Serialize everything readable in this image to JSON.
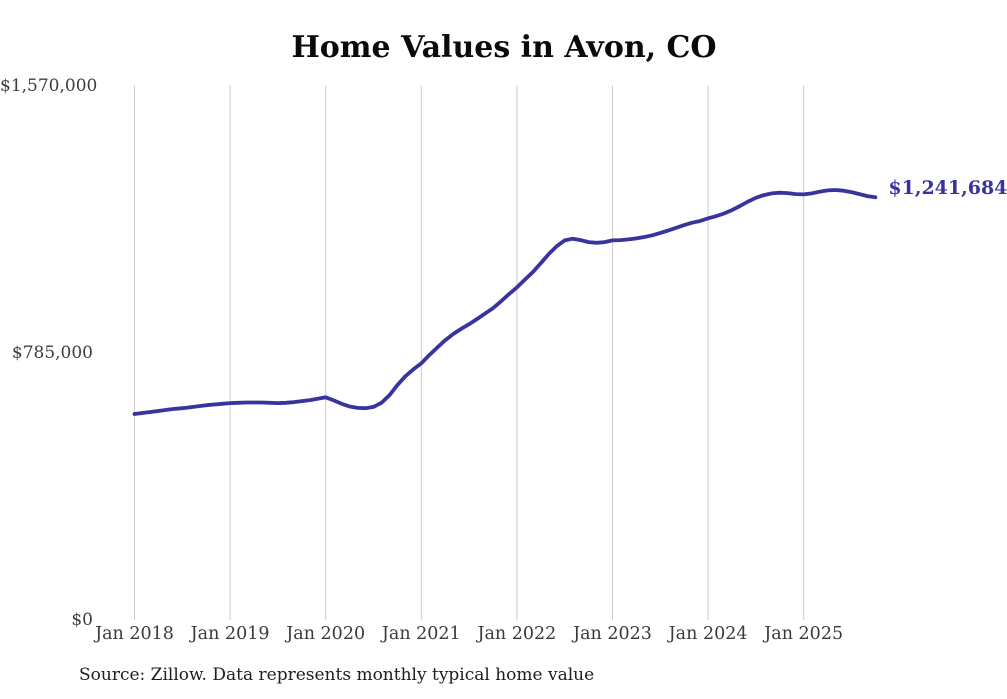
{
  "title": "Home Values in Avon, CO",
  "source_note": "Source: Zillow. Data represents monthly typical home value",
  "colors": {
    "line": "#39339f",
    "grid": "#cccccc",
    "axis_text": "#3a3a3a",
    "title_text": "#0a0a0a",
    "background": "#ffffff"
  },
  "chart_data": {
    "type": "line",
    "title": "Home Values in Avon, CO",
    "xlabel": "",
    "ylabel": "",
    "x_start": "Jan 2018",
    "x_interval": "month",
    "x_tick_labels": [
      "Jan 2018",
      "Jan 2019",
      "Jan 2020",
      "Jan 2021",
      "Jan 2022",
      "Jan 2023",
      "Jan 2024",
      "Jan 2025"
    ],
    "y_ticks": [
      0,
      785000,
      1570000
    ],
    "y_tick_labels": [
      "$0",
      "$785,000",
      "$1,570,000"
    ],
    "ylim": [
      0,
      1570000
    ],
    "grid": "vertical-only",
    "legend": "none",
    "final_value_label": "$1,241,684",
    "series": [
      {
        "name": "Monthly typical home value",
        "values": [
          605000,
          608000,
          611000,
          614000,
          617000,
          620000,
          622000,
          625000,
          628000,
          631000,
          633000,
          635000,
          637000,
          638000,
          639000,
          639000,
          639000,
          638000,
          637000,
          638000,
          640000,
          643000,
          646000,
          650000,
          654000,
          645000,
          635000,
          627000,
          623000,
          622000,
          626000,
          638000,
          660000,
          690000,
          716000,
          736000,
          754000,
          778000,
          800000,
          822000,
          840000,
          855000,
          869000,
          884000,
          900000,
          916000,
          936000,
          957000,
          977000,
          1000000,
          1022000,
          1048000,
          1075000,
          1098000,
          1115000,
          1120000,
          1116000,
          1110000,
          1108000,
          1110000,
          1115000,
          1116000,
          1118000,
          1121000,
          1125000,
          1130000,
          1137000,
          1144000,
          1152000,
          1160000,
          1167000,
          1172000,
          1180000,
          1186000,
          1194000,
          1204000,
          1216000,
          1229000,
          1240000,
          1248000,
          1253000,
          1255000,
          1254000,
          1251000,
          1250000,
          1253000,
          1258000,
          1262000,
          1263000,
          1261000,
          1257000,
          1251000,
          1245000,
          1241684
        ]
      }
    ]
  }
}
